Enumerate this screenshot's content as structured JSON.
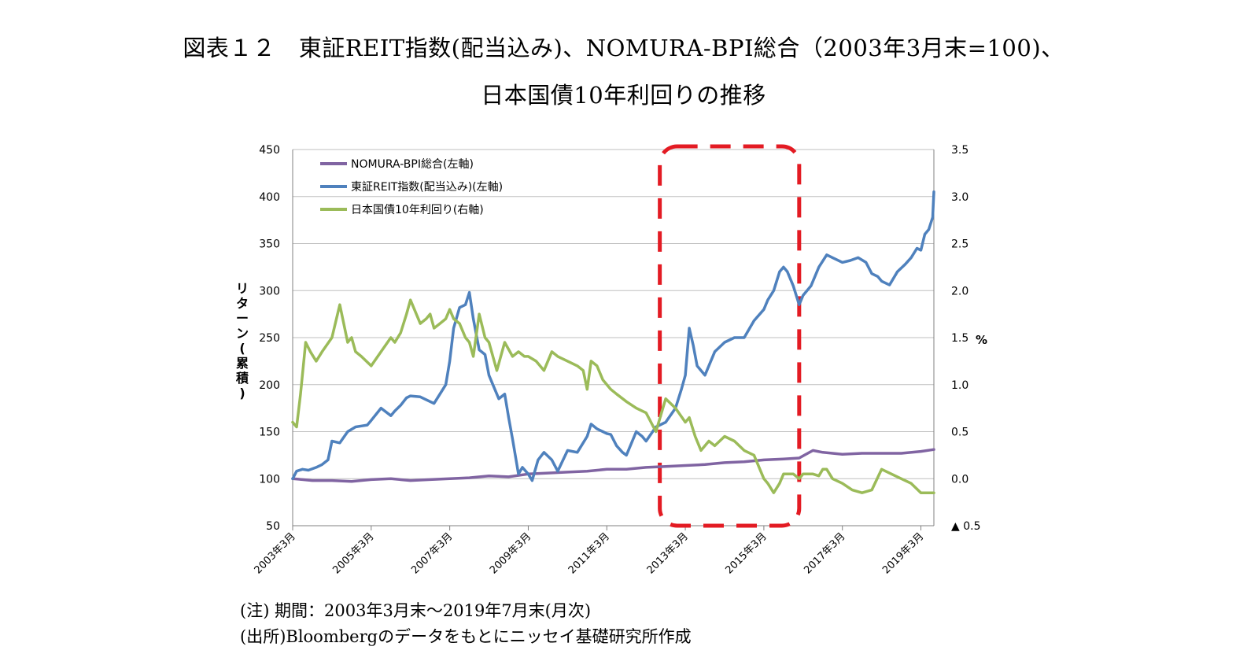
{
  "title_lines": [
    "図表１２　東証REIT指数(配当込み)、NOMURA-BPI総合（2003年3月末=100)、",
    "日本国債10年利回りの推移"
  ],
  "notes": [
    "(注) 期間：2003年3月末～2019年7月末(月次)",
    "(出所)Bloombergのデータをもとにニッセイ基礎研究所作成"
  ],
  "chart_data": {
    "type": "line",
    "y_left": {
      "label": "リターン(累積)",
      "min": 50,
      "max": 450,
      "ticks": [
        50,
        100,
        150,
        200,
        250,
        300,
        350,
        400,
        450
      ]
    },
    "y_right": {
      "label": "%",
      "min": -0.5,
      "max": 3.5,
      "ticks": [
        {
          "v": -0.5,
          "t": "▲ 0.5"
        },
        {
          "v": 0,
          "t": "0.0"
        },
        {
          "v": 0.5,
          "t": "0.5"
        },
        {
          "v": 1,
          "t": "1.0"
        },
        {
          "v": 1.5,
          "t": "1.5"
        },
        {
          "v": 2,
          "t": "2.0"
        },
        {
          "v": 2.5,
          "t": "2.5"
        },
        {
          "v": 3,
          "t": "3.0"
        },
        {
          "v": 3.5,
          "t": "3.5"
        }
      ]
    },
    "x_ticks": [
      {
        "x": 2003.0,
        "label": "2003年3月"
      },
      {
        "x": 2005.0,
        "label": "2005年3月"
      },
      {
        "x": 2007.0,
        "label": "2007年3月"
      },
      {
        "x": 2009.0,
        "label": "2009年3月"
      },
      {
        "x": 2011.0,
        "label": "2011年3月"
      },
      {
        "x": 2013.0,
        "label": "2013年3月"
      },
      {
        "x": 2015.0,
        "label": "2015年3月"
      },
      {
        "x": 2017.0,
        "label": "2017年3月"
      },
      {
        "x": 2019.0,
        "label": "2019年3月"
      }
    ],
    "x_range": [
      2003.0,
      2019.33
    ],
    "grid": "horizontal",
    "legend_position": "top-left",
    "highlight_box": {
      "x_start": 2012.35,
      "x_end": 2015.9,
      "color": "#e31b23",
      "style": "dashed"
    },
    "series": [
      {
        "name": "NOMURA-BPI総合(左軸)",
        "axis": "left",
        "color": "#8064a2",
        "x": [
          2003.0,
          2003.25,
          2003.5,
          2004.0,
          2004.5,
          2005.0,
          2005.5,
          2006.0,
          2006.5,
          2007.0,
          2007.5,
          2008.0,
          2008.5,
          2009.0,
          2009.5,
          2010.0,
          2010.5,
          2011.0,
          2011.5,
          2012.0,
          2012.5,
          2013.0,
          2013.5,
          2014.0,
          2014.5,
          2015.0,
          2015.5,
          2015.9,
          2016.25,
          2016.5,
          2017.0,
          2017.5,
          2018.0,
          2018.5,
          2019.0,
          2019.33
        ],
        "y": [
          100,
          99,
          98,
          98,
          97,
          99,
          100,
          98,
          99,
          100,
          101,
          103,
          102,
          105,
          106,
          107,
          108,
          110,
          110,
          112,
          113,
          114,
          115,
          117,
          118,
          120,
          121,
          122,
          130,
          128,
          126,
          127,
          127,
          127,
          129,
          131
        ]
      },
      {
        "name": "東証REIT指数(配当込み)(左軸)",
        "axis": "left",
        "color": "#4f81bd",
        "x": [
          2003.0,
          2003.1,
          2003.25,
          2003.4,
          2003.6,
          2003.75,
          2003.9,
          2004.0,
          2004.2,
          2004.4,
          2004.6,
          2004.75,
          2004.9,
          2005.0,
          2005.25,
          2005.5,
          2005.6,
          2005.75,
          2005.9,
          2006.0,
          2006.25,
          2006.5,
          2006.6,
          2006.75,
          2006.9,
          2007.0,
          2007.1,
          2007.25,
          2007.4,
          2007.5,
          2007.6,
          2007.75,
          2007.9,
          2008.0,
          2008.1,
          2008.25,
          2008.4,
          2008.5,
          2008.6,
          2008.75,
          2008.85,
          2009.0,
          2009.1,
          2009.25,
          2009.4,
          2009.6,
          2009.75,
          2010.0,
          2010.25,
          2010.5,
          2010.6,
          2010.75,
          2010.9,
          2011.0,
          2011.1,
          2011.25,
          2011.4,
          2011.5,
          2011.75,
          2011.9,
          2012.0,
          2012.25,
          2012.5,
          2012.75,
          2012.9,
          2013.0,
          2013.1,
          2013.2,
          2013.3,
          2013.5,
          2013.75,
          2014.0,
          2014.25,
          2014.5,
          2014.75,
          2015.0,
          2015.1,
          2015.25,
          2015.4,
          2015.5,
          2015.6,
          2015.75,
          2015.9,
          2016.0,
          2016.2,
          2016.4,
          2016.6,
          2016.75,
          2017.0,
          2017.2,
          2017.4,
          2017.6,
          2017.75,
          2017.9,
          2018.0,
          2018.2,
          2018.4,
          2018.6,
          2018.75,
          2018.9,
          2019.0,
          2019.1,
          2019.2,
          2019.3,
          2019.33
        ],
        "y": [
          100,
          108,
          110,
          109,
          112,
          115,
          120,
          140,
          138,
          150,
          155,
          156,
          157,
          162,
          175,
          167,
          172,
          178,
          186,
          188,
          187,
          182,
          180,
          190,
          200,
          225,
          260,
          282,
          285,
          298,
          270,
          237,
          232,
          210,
          200,
          185,
          190,
          165,
          142,
          105,
          112,
          105,
          98,
          120,
          128,
          120,
          108,
          130,
          128,
          145,
          158,
          153,
          150,
          148,
          147,
          135,
          128,
          125,
          150,
          145,
          140,
          155,
          160,
          175,
          195,
          210,
          260,
          242,
          220,
          210,
          235,
          245,
          250,
          250,
          268,
          280,
          290,
          300,
          320,
          325,
          320,
          305,
          285,
          295,
          305,
          325,
          338,
          335,
          330,
          332,
          335,
          330,
          318,
          315,
          310,
          306,
          320,
          328,
          335,
          345,
          343,
          360,
          365,
          378,
          405
        ]
      },
      {
        "name": "日本国債10年利回り(右軸)",
        "axis": "right",
        "color": "#9bbb59",
        "x": [
          2003.0,
          2003.1,
          2003.2,
          2003.33,
          2003.45,
          2003.6,
          2003.75,
          2004.0,
          2004.2,
          2004.4,
          2004.5,
          2004.6,
          2004.75,
          2005.0,
          2005.25,
          2005.5,
          2005.6,
          2005.75,
          2005.9,
          2006.0,
          2006.25,
          2006.4,
          2006.5,
          2006.6,
          2006.75,
          2006.9,
          2007.0,
          2007.1,
          2007.25,
          2007.4,
          2007.5,
          2007.6,
          2007.75,
          2007.9,
          2008.0,
          2008.2,
          2008.4,
          2008.6,
          2008.75,
          2008.9,
          2009.0,
          2009.2,
          2009.4,
          2009.6,
          2009.75,
          2010.0,
          2010.25,
          2010.4,
          2010.5,
          2010.6,
          2010.75,
          2010.9,
          2011.0,
          2011.1,
          2011.25,
          2011.5,
          2011.75,
          2011.9,
          2012.0,
          2012.25,
          2012.5,
          2012.75,
          2013.0,
          2013.1,
          2013.25,
          2013.4,
          2013.6,
          2013.75,
          2014.0,
          2014.25,
          2014.5,
          2014.75,
          2015.0,
          2015.1,
          2015.25,
          2015.4,
          2015.5,
          2015.75,
          2015.9,
          2016.0,
          2016.1,
          2016.25,
          2016.4,
          2016.5,
          2016.6,
          2016.75,
          2017.0,
          2017.25,
          2017.5,
          2017.75,
          2018.0,
          2018.25,
          2018.5,
          2018.75,
          2019.0,
          2019.2,
          2019.3,
          2019.33
        ],
        "y": [
          0.6,
          0.55,
          0.9,
          1.45,
          1.35,
          1.25,
          1.35,
          1.5,
          1.85,
          1.45,
          1.5,
          1.35,
          1.3,
          1.2,
          1.35,
          1.5,
          1.45,
          1.55,
          1.75,
          1.9,
          1.65,
          1.7,
          1.75,
          1.6,
          1.65,
          1.7,
          1.8,
          1.7,
          1.65,
          1.5,
          1.45,
          1.3,
          1.75,
          1.5,
          1.45,
          1.15,
          1.45,
          1.3,
          1.35,
          1.3,
          1.3,
          1.25,
          1.15,
          1.35,
          1.3,
          1.25,
          1.2,
          1.15,
          0.95,
          1.25,
          1.2,
          1.05,
          1.0,
          0.95,
          0.9,
          0.82,
          0.75,
          0.72,
          0.7,
          0.5,
          0.85,
          0.75,
          0.6,
          0.65,
          0.45,
          0.3,
          0.4,
          0.35,
          0.45,
          0.4,
          0.3,
          0.25,
          0.0,
          -0.05,
          -0.15,
          -0.05,
          0.05,
          0.05,
          0.0,
          0.05,
          0.05,
          0.05,
          0.03,
          0.1,
          0.1,
          0.0,
          -0.05,
          -0.12,
          -0.15,
          -0.12,
          0.1,
          0.05,
          0.0,
          -0.05,
          -0.15,
          -0.15,
          -0.15,
          -0.15
        ]
      }
    ]
  }
}
